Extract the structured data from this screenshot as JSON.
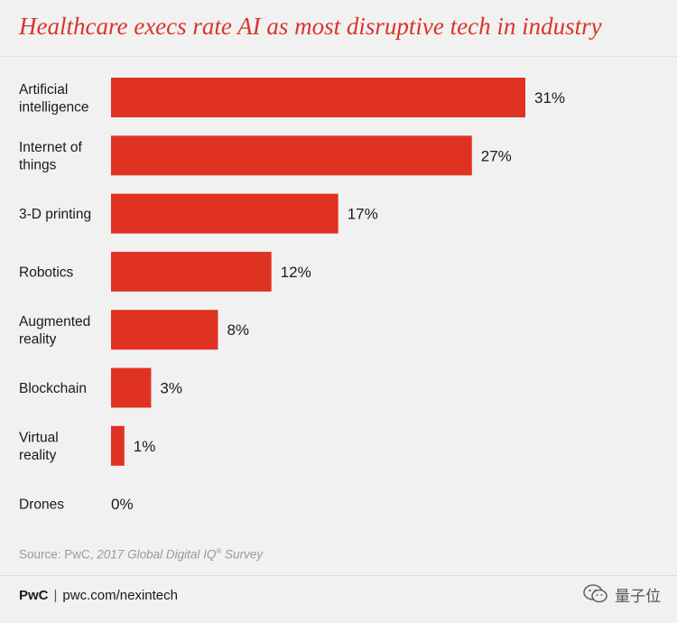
{
  "title": "Healthcare execs rate AI as most disruptive tech in industry",
  "chart_data": {
    "type": "bar",
    "orientation": "horizontal",
    "title": "Healthcare execs rate AI as most disruptive tech in industry",
    "categories": [
      [
        "Artificial",
        "intelligence"
      ],
      [
        "Internet of",
        "things"
      ],
      [
        "3-D printing"
      ],
      [
        "Robotics"
      ],
      [
        "Augmented",
        "reality"
      ],
      [
        "Blockchain"
      ],
      [
        "Virtual",
        "reality"
      ],
      [
        "Drones"
      ]
    ],
    "values": [
      31,
      27,
      17,
      12,
      8,
      3,
      1,
      0
    ],
    "value_labels": [
      "31%",
      "27%",
      "17%",
      "12%",
      "8%",
      "3%",
      "1%",
      "0%"
    ],
    "unit": "%",
    "bar_color": "#e03223",
    "xlim": [
      0,
      31
    ],
    "grid": false,
    "legend": "none"
  },
  "source": {
    "prefix": "Source: PwC, ",
    "survey_name": "2017 Global Digital IQ",
    "registered": "®",
    "suffix": " Survey"
  },
  "footer": {
    "brand": "PwC",
    "separator": "|",
    "url": "pwc.com/nexintech"
  },
  "watermark": {
    "text": "量子位",
    "icon": "wechat-icon"
  },
  "colors": {
    "title": "#d9352a",
    "bar": "#e03223",
    "background": "#f1f1f1"
  }
}
